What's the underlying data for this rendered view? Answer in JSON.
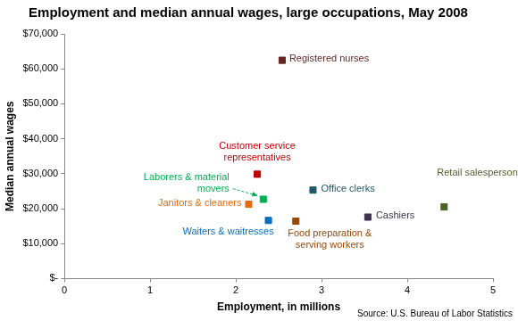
{
  "chart_data": {
    "type": "scatter",
    "title": "Employment and median annual wages, large occupations, May 2008",
    "x_label": "Employment, in millions",
    "y_label": "Median annual wages",
    "source": "Source: U.S. Bureau of Labor Statistics",
    "marker": "square",
    "grid": false,
    "point_labels": [
      [
        "Registered nurses"
      ],
      [
        "Customer service",
        "representatives"
      ],
      [
        "Laborers & material",
        "movers"
      ],
      [
        "Janitors & cleaners"
      ],
      [
        "Waiters & waitresses"
      ],
      [
        "Office clerks"
      ],
      [
        "Food preparation &",
        "serving workers"
      ],
      [
        "Cashiers"
      ],
      [
        "Retail salespersons"
      ]
    ],
    "x": [
      2.54,
      2.25,
      2.32,
      2.15,
      2.38,
      2.9,
      2.7,
      3.54,
      4.43
    ],
    "values": [
      62450,
      29860,
      22690,
      21260,
      16630,
      25320,
      16430,
      17580,
      20510
    ],
    "colors": [
      "#632523",
      "#c00000",
      "#00b050",
      "#e46c0a",
      "#0070c0",
      "#215968",
      "#984807",
      "#403151",
      "#4f6228"
    ],
    "xlim": [
      0,
      5
    ],
    "xticks": [
      0,
      1,
      2,
      3,
      4,
      5
    ],
    "ylim": [
      0,
      70000
    ],
    "yticks": [
      {
        "value": 0,
        "label": "$-"
      },
      {
        "value": 10000,
        "label": "$10,000"
      },
      {
        "value": 20000,
        "label": "$20,000"
      },
      {
        "value": 30000,
        "label": "$30,000"
      },
      {
        "value": 40000,
        "label": "$40,000"
      },
      {
        "value": 50000,
        "label": "$50,000"
      },
      {
        "value": 60000,
        "label": "$60,000"
      },
      {
        "value": 70000,
        "label": "$70,000"
      }
    ]
  }
}
